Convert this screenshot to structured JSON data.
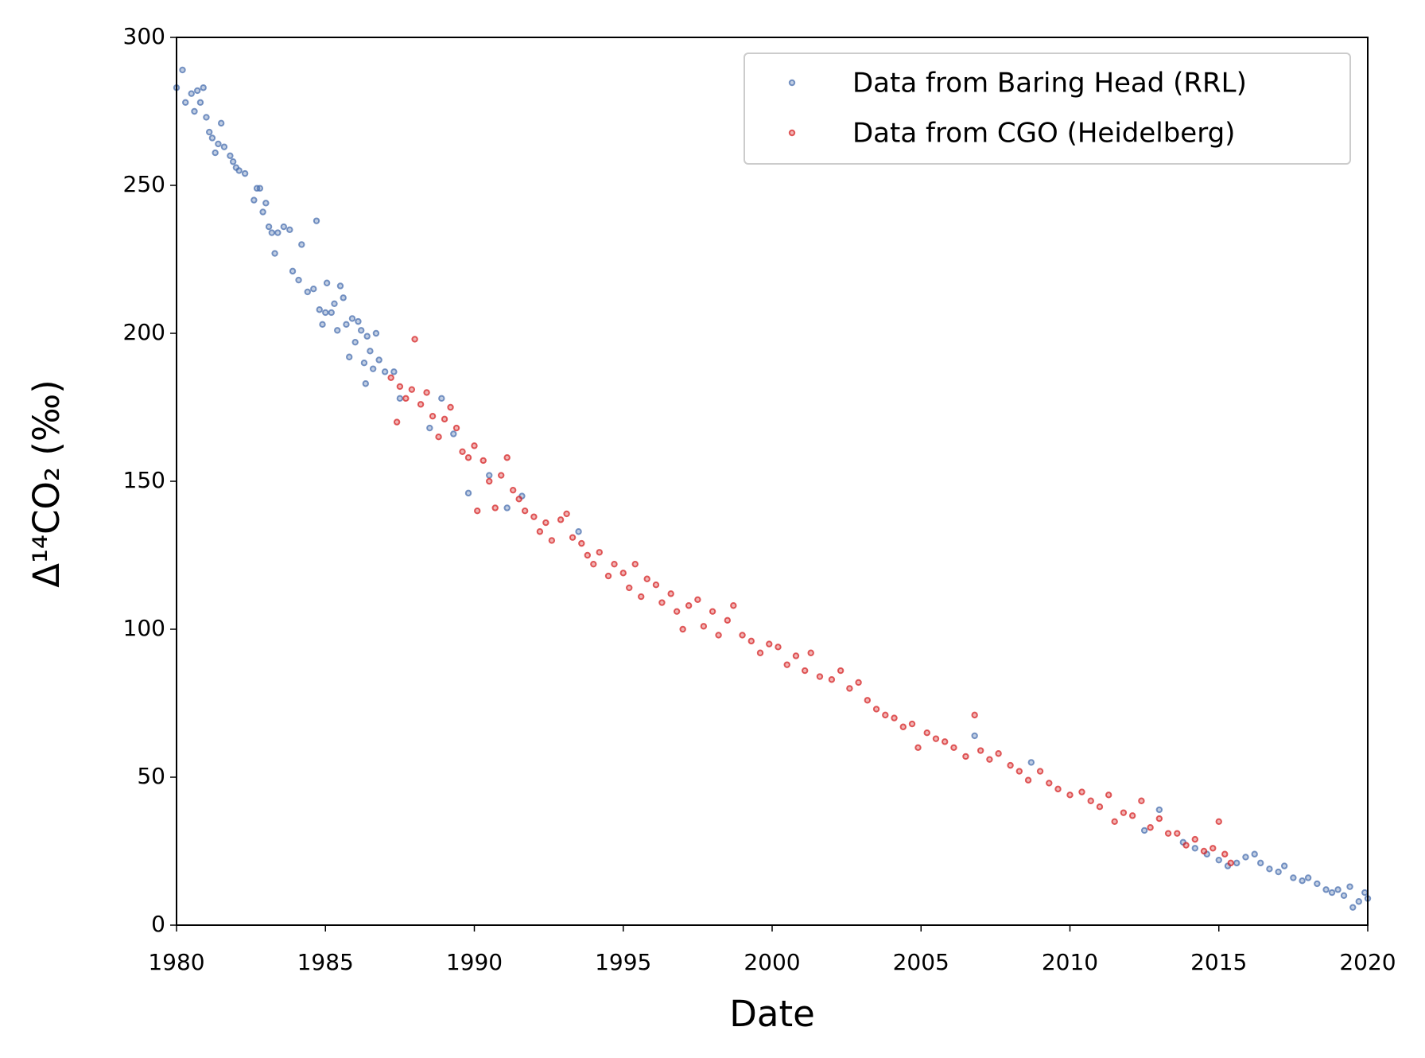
{
  "chart_data": {
    "type": "scatter",
    "x_label": "Date",
    "y_label": "Δ¹⁴CO₂ (‰)",
    "xlim": [
      1980,
      2020
    ],
    "xticks": [
      1980,
      1985,
      1990,
      1995,
      2000,
      2005,
      2010,
      2015,
      2020
    ],
    "ylim": [
      0,
      300
    ],
    "yticks": [
      0,
      50,
      100,
      150,
      200,
      250,
      300
    ],
    "grid": false,
    "legend": "upper right",
    "series": [
      {
        "name": "Data from Baring Head (RRL)",
        "color": "#4c72b0",
        "x": [
          1980.0,
          1980.2,
          1980.3,
          1980.5,
          1980.7,
          1980.9,
          1980.8,
          1980.6,
          1981.0,
          1981.1,
          1981.2,
          1981.3,
          1981.4,
          1981.5,
          1981.6,
          1981.8,
          1981.9,
          1982.0,
          1982.1,
          1982.3,
          1982.6,
          1982.7,
          1982.8,
          1982.9,
          1983.0,
          1983.1,
          1983.2,
          1983.3,
          1983.4,
          1983.6,
          1983.8,
          1983.9,
          1984.1,
          1984.2,
          1984.4,
          1984.6,
          1984.7,
          1984.8,
          1984.9,
          1985.0,
          1985.05,
          1985.2,
          1985.3,
          1985.4,
          1985.5,
          1985.6,
          1985.7,
          1985.8,
          1985.9,
          1986.0,
          1986.1,
          1986.2,
          1986.3,
          1986.35,
          1986.4,
          1986.5,
          1986.6,
          1986.7,
          1986.8,
          1987.0,
          1987.3,
          1987.5,
          1988.5,
          1988.9,
          1989.3,
          1989.8,
          1990.5,
          1991.1,
          1991.6,
          1993.5,
          2006.8,
          2008.7,
          2012.5,
          2013.0,
          2013.8,
          2014.2,
          2014.6,
          2015.0,
          2015.3,
          2015.6,
          2015.9,
          2016.2,
          2016.4,
          2016.7,
          2017.0,
          2017.2,
          2017.5,
          2017.8,
          2018.0,
          2018.3,
          2018.6,
          2018.8,
          2019.0,
          2019.2,
          2019.4,
          2019.5,
          2019.7,
          2019.9,
          2020.0
        ],
        "values": [
          283,
          289,
          278,
          281,
          282,
          283,
          278,
          275,
          273,
          268,
          266,
          261,
          264,
          271,
          263,
          260,
          258,
          256,
          255,
          254,
          245,
          249,
          249,
          241,
          244,
          236,
          234,
          227,
          234,
          236,
          235,
          221,
          218,
          230,
          214,
          215,
          238,
          208,
          203,
          207,
          217,
          207,
          210,
          201,
          216,
          212,
          203,
          192,
          205,
          197,
          204,
          201,
          190,
          183,
          199,
          194,
          188,
          200,
          191,
          187,
          187,
          178,
          168,
          178,
          166,
          146,
          152,
          141,
          145,
          133,
          64,
          55,
          32,
          39,
          28,
          26,
          24,
          22,
          20,
          21,
          23,
          24,
          21,
          19,
          18,
          20,
          16,
          15,
          16,
          14,
          12,
          11,
          12,
          10,
          13,
          6,
          8,
          11,
          9
        ]
      },
      {
        "name": "Data from CGO (Heidelberg)",
        "color": "#d62728",
        "x": [
          1987.2,
          1987.4,
          1987.5,
          1987.7,
          1987.9,
          1988.0,
          1988.2,
          1988.4,
          1988.6,
          1988.8,
          1989.0,
          1989.2,
          1989.4,
          1989.6,
          1989.8,
          1990.0,
          1990.1,
          1990.3,
          1990.5,
          1990.7,
          1990.9,
          1991.1,
          1991.3,
          1991.5,
          1991.7,
          1992.0,
          1992.2,
          1992.4,
          1992.6,
          1992.9,
          1993.1,
          1993.3,
          1993.6,
          1993.8,
          1994.0,
          1994.2,
          1994.5,
          1994.7,
          1995.0,
          1995.2,
          1995.4,
          1995.6,
          1995.8,
          1996.1,
          1996.3,
          1996.6,
          1996.8,
          1997.0,
          1997.2,
          1997.5,
          1997.7,
          1998.0,
          1998.2,
          1998.5,
          1998.7,
          1999.0,
          1999.3,
          1999.6,
          1999.9,
          2000.2,
          2000.5,
          2000.8,
          2001.1,
          2001.3,
          2001.6,
          2002.0,
          2002.3,
          2002.6,
          2002.9,
          2003.2,
          2003.5,
          2003.8,
          2004.1,
          2004.4,
          2004.7,
          2004.9,
          2005.2,
          2005.5,
          2005.8,
          2006.1,
          2006.5,
          2006.8,
          2007.0,
          2007.3,
          2007.6,
          2008.0,
          2008.3,
          2008.6,
          2009.0,
          2009.3,
          2009.6,
          2010.0,
          2010.4,
          2010.7,
          2011.0,
          2011.3,
          2011.5,
          2011.8,
          2012.1,
          2012.4,
          2012.7,
          2013.0,
          2013.3,
          2013.6,
          2013.9,
          2014.2,
          2014.5,
          2014.8,
          2015.0,
          2015.2,
          2015.4
        ],
        "values": [
          185,
          170,
          182,
          178,
          181,
          198,
          176,
          180,
          172,
          165,
          171,
          175,
          168,
          160,
          158,
          162,
          140,
          157,
          150,
          141,
          152,
          158,
          147,
          144,
          140,
          138,
          133,
          136,
          130,
          137,
          139,
          131,
          129,
          125,
          122,
          126,
          118,
          122,
          119,
          114,
          122,
          111,
          117,
          115,
          109,
          112,
          106,
          100,
          108,
          110,
          101,
          106,
          98,
          103,
          108,
          98,
          96,
          92,
          95,
          94,
          88,
          91,
          86,
          92,
          84,
          83,
          86,
          80,
          82,
          76,
          73,
          71,
          70,
          67,
          68,
          60,
          65,
          63,
          62,
          60,
          57,
          71,
          59,
          56,
          58,
          54,
          52,
          49,
          52,
          48,
          46,
          44,
          45,
          42,
          40,
          44,
          35,
          38,
          37,
          42,
          33,
          36,
          31,
          31,
          27,
          29,
          25,
          26,
          35,
          24,
          21
        ]
      }
    ]
  }
}
